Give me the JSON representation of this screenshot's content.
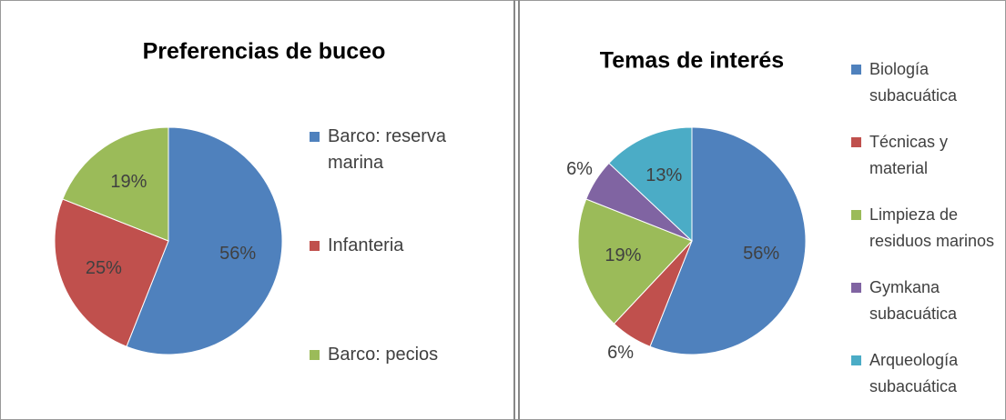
{
  "chart_data": [
    {
      "type": "pie",
      "title": "Preferencias de buceo",
      "categories": [
        "Barco: reserva marina",
        "Infanteria",
        "Barco: pecios"
      ],
      "values": [
        56,
        25,
        19
      ],
      "value_labels": [
        "56%",
        "25%",
        "19%"
      ],
      "colors": [
        "#4f81bd",
        "#c0504d",
        "#9bbb59"
      ],
      "legend": "right"
    },
    {
      "type": "pie",
      "title": "Temas de interés",
      "categories": [
        "Biología subacuática",
        "Técnicas y material",
        "Limpieza de residuos marinos",
        "Gymkana subacuática",
        "Arqueología subacuática"
      ],
      "values": [
        56,
        6,
        19,
        6,
        13
      ],
      "value_labels": [
        "56%",
        "6%",
        "19%",
        "6%",
        "13%"
      ],
      "colors": [
        "#4f81bd",
        "#c0504d",
        "#9bbb59",
        "#8064a2",
        "#4bacc6"
      ],
      "legend": "right"
    }
  ]
}
